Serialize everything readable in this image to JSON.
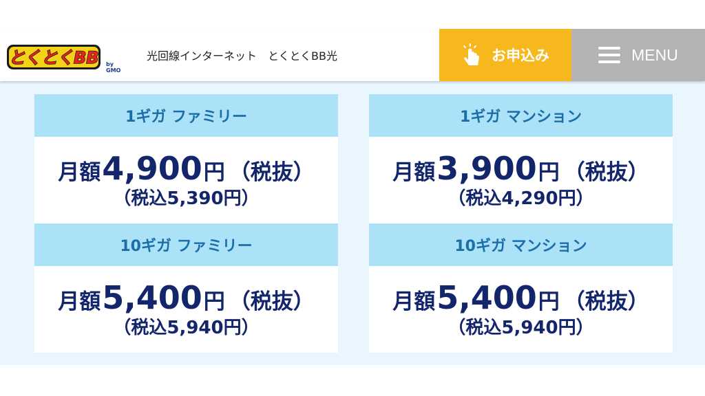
{
  "header": {
    "logo_text": "とくとくBB",
    "logo_sub": "by GMO",
    "tagline": "光回線インターネット　とくとくBB光",
    "apply_label": "お申込み",
    "menu_label": "MENU"
  },
  "colors": {
    "accent_yellow": "#f6b81c",
    "menu_gray": "#b3b3b3",
    "card_header": "#abe2f8",
    "header_text": "#1b6ea8",
    "price_text": "#13256b",
    "background": "#eaf6fd"
  },
  "plans": [
    {
      "name": "1ギガ ファミリー",
      "prefix": "月額",
      "amount": "4,900",
      "unit": "円",
      "tax_note": "（税抜）",
      "tax_included": "（税込5,390円）"
    },
    {
      "name": "1ギガ マンション",
      "prefix": "月額",
      "amount": "3,900",
      "unit": "円",
      "tax_note": "（税抜）",
      "tax_included": "（税込4,290円）"
    },
    {
      "name": "10ギガ ファミリー",
      "prefix": "月額",
      "amount": "5,400",
      "unit": "円",
      "tax_note": "（税抜）",
      "tax_included": "（税込5,940円）"
    },
    {
      "name": "10ギガ マンション",
      "prefix": "月額",
      "amount": "5,400",
      "unit": "円",
      "tax_note": "（税抜）",
      "tax_included": "（税込5,940円）"
    }
  ],
  "icons": [
    "tap-hand-icon",
    "menu-icon"
  ]
}
